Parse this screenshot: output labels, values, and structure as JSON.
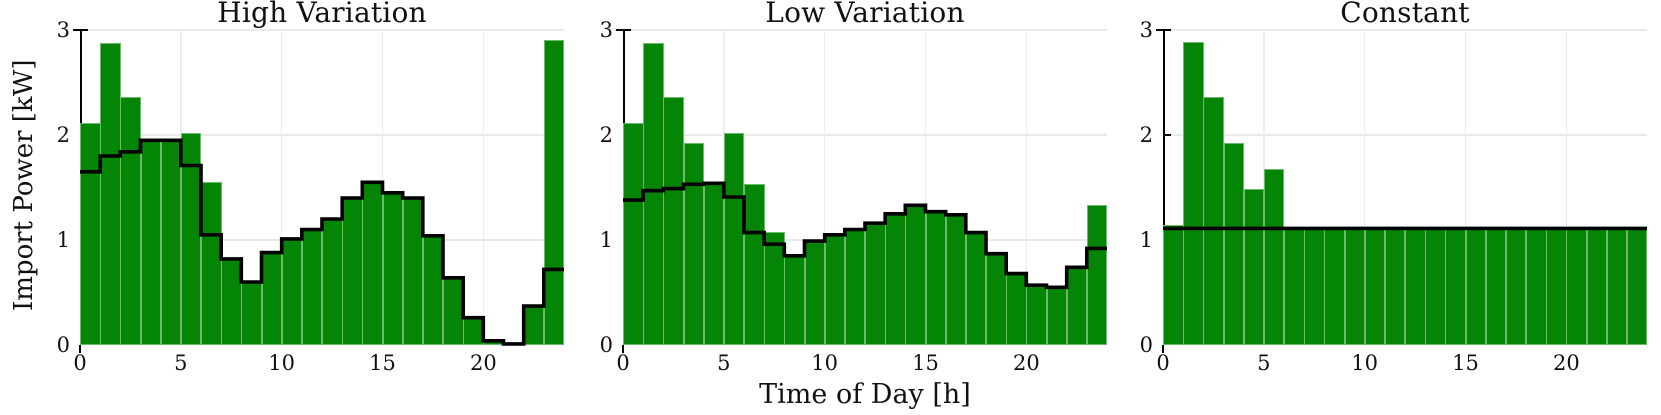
{
  "figure": {
    "ylabel": "Import Power [kW]",
    "xlabel": "Time of Day [h]",
    "y_tick_labels": [
      "0",
      "1",
      "2",
      "3"
    ],
    "x_tick_labels": [
      "0",
      "5",
      "10",
      "15",
      "20"
    ],
    "colors": {
      "bar_fill": "#058505",
      "bar_edge": "#6cb86c",
      "step_line": "#000000",
      "grid": "#e9e9e9",
      "axis": "#000000",
      "text": "#111111"
    }
  },
  "chart_data": [
    {
      "type": "bar",
      "title": "High Variation",
      "xlabel": "Time of Day [h]",
      "ylabel": "Import Power [kW]",
      "xlim": [
        0,
        24
      ],
      "ylim": [
        0,
        3
      ],
      "x_ticks": [
        0,
        5,
        10,
        15,
        20
      ],
      "y_ticks": [
        0,
        1,
        2,
        3
      ],
      "categories_hours": [
        0,
        1,
        2,
        3,
        4,
        5,
        6,
        7,
        8,
        9,
        10,
        11,
        12,
        13,
        14,
        15,
        16,
        17,
        18,
        19,
        20,
        21,
        22,
        23
      ],
      "series": [
        {
          "name": "import-power-bars",
          "values": [
            2.11,
            2.88,
            2.36,
            1.95,
            1.95,
            2.02,
            1.55,
            0.82,
            0.6,
            0.88,
            1.01,
            1.1,
            1.2,
            1.4,
            1.55,
            1.45,
            1.4,
            1.04,
            0.64,
            0.26,
            0.04,
            0.01,
            0.37,
            2.9
          ]
        },
        {
          "name": "step-line",
          "values": [
            1.65,
            1.8,
            1.84,
            1.95,
            1.95,
            1.71,
            1.05,
            0.82,
            0.6,
            0.88,
            1.01,
            1.1,
            1.2,
            1.4,
            1.55,
            1.45,
            1.4,
            1.04,
            0.64,
            0.26,
            0.04,
            0.01,
            0.37,
            0.72
          ]
        }
      ]
    },
    {
      "type": "bar",
      "title": "Low Variation",
      "xlabel": "Time of Day [h]",
      "ylabel": "Import Power [kW]",
      "xlim": [
        0,
        24
      ],
      "ylim": [
        0,
        3
      ],
      "x_ticks": [
        0,
        5,
        10,
        15,
        20
      ],
      "y_ticks": [
        0,
        1,
        2,
        3
      ],
      "categories_hours": [
        0,
        1,
        2,
        3,
        4,
        5,
        6,
        7,
        8,
        9,
        10,
        11,
        12,
        13,
        14,
        15,
        16,
        17,
        18,
        19,
        20,
        21,
        22,
        23
      ],
      "series": [
        {
          "name": "import-power-bars",
          "values": [
            2.11,
            2.88,
            2.36,
            1.92,
            1.54,
            2.02,
            1.53,
            1.08,
            0.85,
            0.99,
            1.05,
            1.1,
            1.16,
            1.25,
            1.33,
            1.27,
            1.24,
            1.07,
            0.87,
            0.68,
            0.57,
            0.55,
            0.74,
            1.33
          ]
        },
        {
          "name": "step-line",
          "values": [
            1.38,
            1.47,
            1.49,
            1.53,
            1.54,
            1.41,
            1.07,
            0.96,
            0.85,
            0.99,
            1.05,
            1.1,
            1.16,
            1.25,
            1.33,
            1.27,
            1.24,
            1.07,
            0.87,
            0.68,
            0.57,
            0.55,
            0.74,
            0.92
          ]
        }
      ]
    },
    {
      "type": "bar",
      "title": "Constant",
      "xlabel": "Time of Day [h]",
      "ylabel": "Import Power [kW]",
      "xlim": [
        0,
        24
      ],
      "ylim": [
        0,
        3
      ],
      "x_ticks": [
        0,
        5,
        10,
        15,
        20
      ],
      "y_ticks": [
        0,
        1,
        2,
        3
      ],
      "categories_hours": [
        0,
        1,
        2,
        3,
        4,
        5,
        6,
        7,
        8,
        9,
        10,
        11,
        12,
        13,
        14,
        15,
        16,
        17,
        18,
        19,
        20,
        21,
        22,
        23
      ],
      "series": [
        {
          "name": "import-power-bars",
          "values": [
            1.14,
            2.89,
            2.36,
            1.92,
            1.49,
            1.68,
            1.11,
            1.11,
            1.11,
            1.11,
            1.11,
            1.11,
            1.11,
            1.11,
            1.11,
            1.11,
            1.11,
            1.11,
            1.11,
            1.11,
            1.11,
            1.11,
            1.11,
            1.11
          ]
        },
        {
          "name": "step-line",
          "values": [
            1.11,
            1.11,
            1.11,
            1.11,
            1.11,
            1.11,
            1.11,
            1.11,
            1.11,
            1.11,
            1.11,
            1.11,
            1.11,
            1.11,
            1.11,
            1.11,
            1.11,
            1.11,
            1.11,
            1.11,
            1.11,
            1.11,
            1.11,
            1.11
          ]
        }
      ]
    }
  ]
}
